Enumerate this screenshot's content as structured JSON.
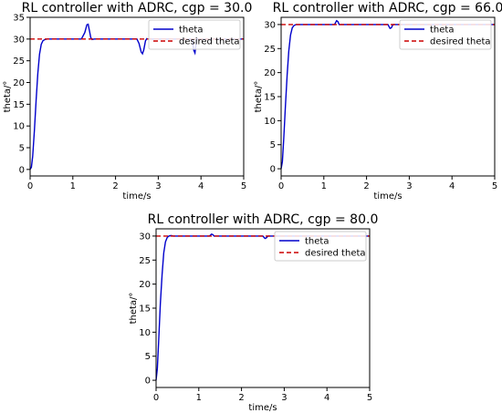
{
  "chart_data": [
    {
      "type": "line",
      "title": "RL controller with ADRC, cgp = 30.0",
      "xlabel": "time/s",
      "ylabel": "theta/°",
      "xlim": [
        0,
        5
      ],
      "ylim": [
        -1.5,
        35
      ],
      "xticks": [
        "0",
        "1",
        "2",
        "3",
        "4",
        "5"
      ],
      "yticks": [
        "0",
        "5",
        "10",
        "15",
        "20",
        "25",
        "30",
        "35"
      ],
      "grid": false,
      "legend_position": "upper-right",
      "series": [
        {
          "name": "theta",
          "color": "#0000cc",
          "style": "solid",
          "x": [
            0,
            0.03,
            0.06,
            0.1,
            0.14,
            0.18,
            0.22,
            0.26,
            0.3,
            0.35,
            0.4,
            0.5,
            1.2,
            1.28,
            1.33,
            1.36,
            1.39,
            1.42,
            1.45,
            1.5,
            2.5,
            2.55,
            2.6,
            2.63,
            2.66,
            2.7,
            2.73,
            2.75,
            3.8,
            3.83,
            3.86,
            3.9,
            5.0
          ],
          "y": [
            0,
            0.5,
            3,
            9,
            16,
            22,
            26.5,
            28.8,
            29.6,
            29.9,
            30,
            30,
            30,
            31.5,
            33.3,
            33.4,
            31.8,
            30.3,
            29.9,
            30,
            30,
            29,
            27,
            26.6,
            27.5,
            29.6,
            30.1,
            30,
            30,
            27.5,
            26.8,
            30,
            30
          ]
        },
        {
          "name": "desired theta",
          "color": "#cc0000",
          "style": "dashed",
          "x": [
            0,
            5
          ],
          "y": [
            30,
            30
          ]
        }
      ]
    },
    {
      "type": "line",
      "title": "RL controller with ADRC, cgp = 66.0",
      "xlabel": "time/s",
      "ylabel": "theta/°",
      "xlim": [
        0,
        5
      ],
      "ylim": [
        -1.5,
        31.5
      ],
      "xticks": [
        "0",
        "1",
        "2",
        "3",
        "4",
        "5"
      ],
      "yticks": [
        "0",
        "5",
        "10",
        "15",
        "20",
        "25",
        "30"
      ],
      "grid": false,
      "legend_position": "upper-right",
      "series": [
        {
          "name": "theta",
          "color": "#0000cc",
          "style": "solid",
          "x": [
            0,
            0.03,
            0.06,
            0.1,
            0.14,
            0.18,
            0.22,
            0.26,
            0.3,
            0.35,
            0.4,
            0.5,
            1.25,
            1.3,
            1.33,
            1.36,
            1.4,
            2.5,
            2.55,
            2.58,
            2.62,
            5.0
          ],
          "y": [
            0,
            1.5,
            6,
            13,
            19.5,
            24.5,
            27.8,
            29.3,
            29.8,
            30,
            30,
            30,
            30,
            30.8,
            30.6,
            30,
            30,
            30,
            29.2,
            29.3,
            30,
            30
          ]
        },
        {
          "name": "desired theta",
          "color": "#cc0000",
          "style": "dashed",
          "x": [
            0,
            5
          ],
          "y": [
            30,
            30
          ]
        }
      ]
    },
    {
      "type": "line",
      "title": "RL controller with ADRC, cgp = 80.0",
      "xlabel": "time/s",
      "ylabel": "theta/°",
      "xlim": [
        0,
        5
      ],
      "ylim": [
        -1.5,
        31.5
      ],
      "xticks": [
        "0",
        "1",
        "2",
        "3",
        "4",
        "5"
      ],
      "yticks": [
        "0",
        "5",
        "10",
        "15",
        "20",
        "25",
        "30"
      ],
      "grid": false,
      "legend_position": "upper-right",
      "series": [
        {
          "name": "theta",
          "color": "#0000cc",
          "style": "solid",
          "x": [
            0,
            0.03,
            0.06,
            0.1,
            0.14,
            0.18,
            0.22,
            0.26,
            0.3,
            0.35,
            0.4,
            0.5,
            1.25,
            1.3,
            1.33,
            1.36,
            1.4,
            2.5,
            2.55,
            2.58,
            2.62,
            5.0
          ],
          "y": [
            0,
            2.5,
            8,
            16,
            22,
            26.5,
            28.8,
            29.7,
            30,
            30.1,
            30,
            30,
            30,
            30.4,
            30.3,
            30,
            30,
            30,
            29.5,
            29.6,
            30,
            30
          ]
        },
        {
          "name": "desired theta",
          "color": "#cc0000",
          "style": "dashed",
          "x": [
            0,
            5
          ],
          "y": [
            30,
            30
          ]
        }
      ]
    }
  ]
}
